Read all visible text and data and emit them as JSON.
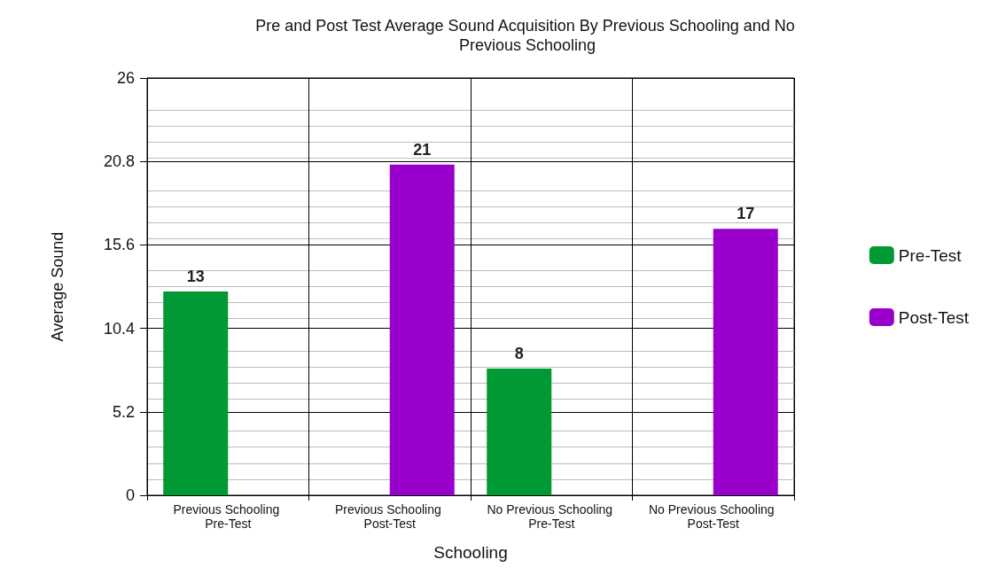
{
  "chart_data": {
    "type": "bar",
    "title": "Pre and Post Test Average Sound Acquisition By Previous Schooling and No Previous Schooling",
    "xlabel": "Schooling",
    "ylabel": "Average Sound",
    "categories": [
      "Previous Schooling Pre-Test",
      "Previous Schooling Post-Test",
      "No Previous Schooling Pre-Test",
      "No Previous Schooling Post-Test"
    ],
    "series": [
      {
        "name": "Pre-Test",
        "color": "#009933",
        "values": [
          12.7,
          null,
          7.9,
          null
        ],
        "value_labels": [
          "13",
          null,
          "8",
          null
        ]
      },
      {
        "name": "Post-Test",
        "color": "#9900cc",
        "values": [
          null,
          20.6,
          null,
          16.6
        ],
        "value_labels": [
          null,
          "21",
          null,
          "17"
        ]
      }
    ],
    "ylim": [
      0,
      26
    ],
    "yticks": [
      0,
      5.2,
      10.4,
      15.6,
      20.8,
      26
    ],
    "grid": true,
    "legend": "right"
  }
}
